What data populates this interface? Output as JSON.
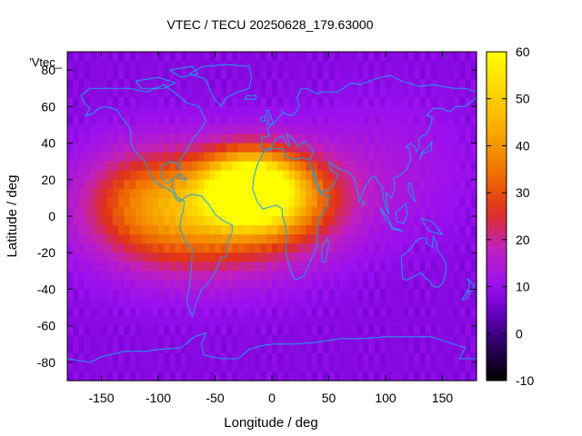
{
  "chart_data": {
    "type": "heatmap",
    "title": "VTEC / TECU 20250628_179.63000",
    "xlabel": "Longitude / deg",
    "ylabel": "Latitude / deg",
    "xlim": [
      -180,
      180
    ],
    "ylim": [
      -90,
      90
    ],
    "xticks": [
      -150,
      -100,
      -50,
      0,
      50,
      100,
      150
    ],
    "yticks": [
      -80,
      -60,
      -40,
      -20,
      0,
      20,
      40,
      60,
      80
    ],
    "x_tick_labels": [
      "-150",
      "-100",
      "-50",
      "0",
      "50",
      "100",
      "150"
    ],
    "y_tick_labels": [
      "-80",
      "-60",
      "-40",
      "-20",
      "0",
      "20",
      "40",
      "60",
      "80"
    ],
    "legend_label": "'Vtec_",
    "colorbar": {
      "range": [
        -10,
        60
      ],
      "ticks": [
        -10,
        0,
        10,
        20,
        30,
        40,
        50,
        60
      ],
      "tick_labels": [
        "-10",
        "0",
        "10",
        "20",
        "30",
        "40",
        "50",
        "60"
      ],
      "palette": [
        "#000000",
        "#2f0066",
        "#6a00c8",
        "#9a10f0",
        "#c020c0",
        "#e0301a",
        "#f07000",
        "#f8b000",
        "#ffe000",
        "#ffff00"
      ],
      "palette_stops": [
        -10,
        -2,
        5,
        10,
        18,
        26,
        34,
        44,
        54,
        60
      ]
    },
    "field": {
      "background_vtec": 8,
      "blobs": [
        {
          "lon": -20,
          "lat": 15,
          "vtec": 52,
          "lon_sigma": 28,
          "lat_sigma": 14
        },
        {
          "lon": -60,
          "lat": 0,
          "vtec": 28,
          "lon_sigma": 60,
          "lat_sigma": 22
        },
        {
          "lon": 20,
          "lat": 10,
          "vtec": 18,
          "lon_sigma": 35,
          "lat_sigma": 18
        },
        {
          "lon": -110,
          "lat": 10,
          "vtec": 14,
          "lon_sigma": 40,
          "lat_sigma": 20
        },
        {
          "lon": 100,
          "lat": 25,
          "vtec": 5,
          "lon_sigma": 50,
          "lat_sigma": 25
        }
      ],
      "grid_step_deg": 5
    },
    "coastline_color": "#1aa0e6"
  }
}
